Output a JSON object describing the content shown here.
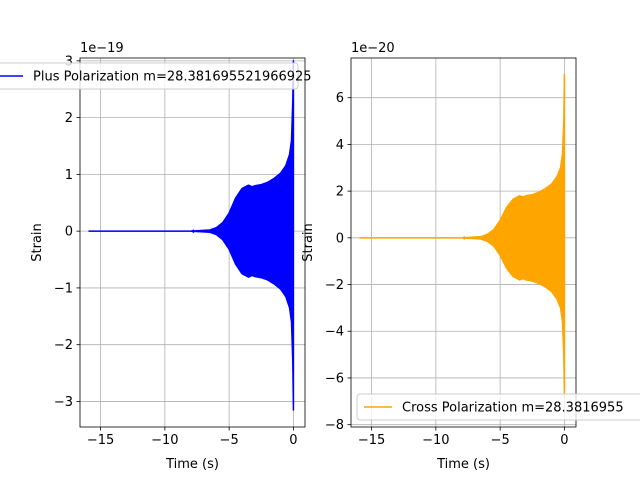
{
  "chart_data": [
    {
      "type": "line",
      "xlabel": "Time (s)",
      "ylabel": "Strain",
      "offset_text": "1e−19",
      "scale": 1e-19,
      "xlim": [
        -16.6,
        0.9
      ],
      "ylim": [
        -3.45,
        3.05
      ],
      "xticks": [
        -15,
        -10,
        -5,
        0
      ],
      "xtick_labels": [
        "−15",
        "−10",
        "−5",
        "0"
      ],
      "yticks": [
        -3,
        -2,
        -1,
        0,
        1,
        2,
        3
      ],
      "ytick_labels": [
        "−3",
        "−2",
        "−1",
        "0",
        "1",
        "2",
        "3"
      ],
      "grid": true,
      "legend_position": "top",
      "series": [
        {
          "name": "Plus Polarization m=28.381695521966925",
          "color": "#0000ff",
          "envelope_x": [
            -15.9,
            -8.0,
            -6.5,
            -6.0,
            -5.5,
            -5.0,
            -4.5,
            -4.0,
            -3.5,
            -3.2,
            -3.0,
            -2.5,
            -2.0,
            -1.5,
            -1.0,
            -0.6,
            -0.3,
            -0.15,
            -0.05,
            0.0
          ],
          "envelope_upper": [
            0,
            0,
            0.02,
            0.06,
            0.15,
            0.32,
            0.58,
            0.75,
            0.81,
            0.78,
            0.8,
            0.82,
            0.86,
            0.93,
            1.02,
            1.15,
            1.35,
            1.6,
            2.3,
            3.0
          ],
          "envelope_lower": [
            0,
            0,
            -0.02,
            -0.06,
            -0.15,
            -0.32,
            -0.58,
            -0.75,
            -0.81,
            -0.78,
            -0.8,
            -0.82,
            -0.86,
            -0.93,
            -1.02,
            -1.15,
            -1.35,
            -1.6,
            -2.3,
            -3.15
          ]
        }
      ]
    },
    {
      "type": "line",
      "xlabel": "Time (s)",
      "ylabel": "Strain",
      "offset_text": "1e−20",
      "scale": 1e-20,
      "xlim": [
        -16.6,
        0.9
      ],
      "ylim": [
        -8.1,
        7.7
      ],
      "xticks": [
        -15,
        -10,
        -5,
        0
      ],
      "xtick_labels": [
        "−15",
        "−10",
        "−5",
        "0"
      ],
      "yticks": [
        -8,
        -6,
        -4,
        -2,
        0,
        2,
        4,
        6
      ],
      "ytick_labels": [
        "−8",
        "−6",
        "−4",
        "−2",
        "0",
        "2",
        "4",
        "6"
      ],
      "grid": true,
      "legend_position": "lower right",
      "series": [
        {
          "name": "Cross Polarization m=28.381695521966925",
          "legend_label_visible": "Cross Polarization m=28.3816955",
          "color": "#ffa500",
          "envelope_x": [
            -15.9,
            -8.0,
            -6.5,
            -6.0,
            -5.5,
            -5.0,
            -4.5,
            -4.0,
            -3.5,
            -3.2,
            -3.0,
            -2.5,
            -2.0,
            -1.5,
            -1.0,
            -0.6,
            -0.3,
            -0.15,
            -0.05,
            0.0
          ],
          "envelope_upper": [
            0,
            0,
            0.05,
            0.15,
            0.35,
            0.75,
            1.3,
            1.65,
            1.8,
            1.75,
            1.8,
            1.85,
            1.95,
            2.1,
            2.3,
            2.6,
            3.0,
            3.6,
            5.0,
            7.0
          ],
          "envelope_lower": [
            0,
            0,
            -0.05,
            -0.15,
            -0.35,
            -0.75,
            -1.3,
            -1.65,
            -1.8,
            -1.75,
            -1.8,
            -1.85,
            -1.95,
            -2.1,
            -2.3,
            -2.6,
            -3.0,
            -3.6,
            -5.0,
            -6.8
          ]
        }
      ]
    }
  ]
}
